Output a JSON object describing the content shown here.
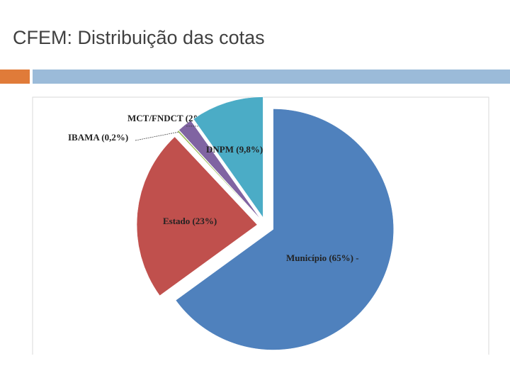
{
  "chart_data": {
    "type": "pie",
    "title": "CFEM: Distribuição das cotas",
    "categories": [
      "Município (65%) -",
      "Estado (23%)",
      "IBAMA (0,2%)",
      "MCT/FNDCT (2%)",
      "DNPM (9,8%)"
    ],
    "values": [
      65,
      23,
      0.2,
      2,
      9.8
    ],
    "colors": [
      "#4f81bd",
      "#c0504d",
      "#9bbb59",
      "#8064a2",
      "#4bacc6"
    ]
  }
}
